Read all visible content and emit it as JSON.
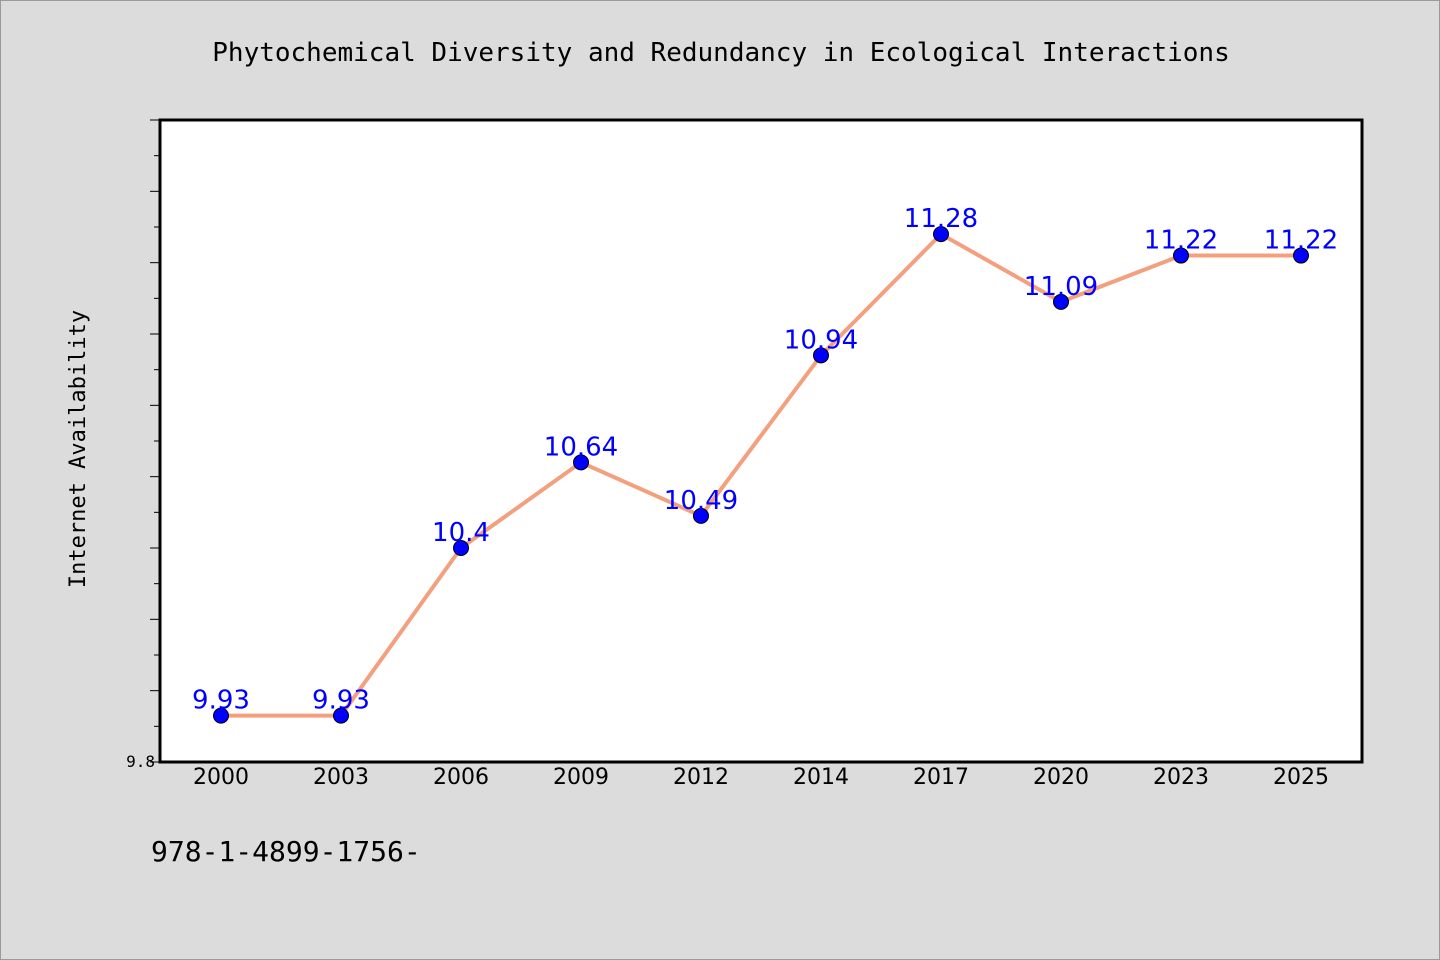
{
  "chart_data": {
    "type": "line",
    "title": "Phytochemical Diversity and Redundancy in Ecological Interactions",
    "xlabel": "",
    "ylabel": "Internet Availability",
    "categories": [
      "2000",
      "2003",
      "2006",
      "2009",
      "2012",
      "2014",
      "2017",
      "2020",
      "2023",
      "2025"
    ],
    "series": [
      {
        "values": [
          9.93,
          9.93,
          10.4,
          10.64,
          10.49,
          10.94,
          11.28,
          11.09,
          11.22,
          11.22
        ],
        "data_labels": [
          "9.93",
          "9.93",
          "10.4",
          "10.64",
          "10.49",
          "10.94",
          "11.28",
          "11.09",
          "11.22",
          "11.22"
        ]
      }
    ],
    "ylim": [
      9.8,
      11.6
    ],
    "yticklabels": [
      "9.8"
    ],
    "grid": false,
    "legend": "none",
    "colors": {
      "line": "#f4a07e",
      "marker": "#0000ff",
      "label": "#0000ff",
      "plot_background": "#ffffff",
      "page_background": "#dcdcdc"
    }
  },
  "footnote": "978-1-4899-1756-"
}
